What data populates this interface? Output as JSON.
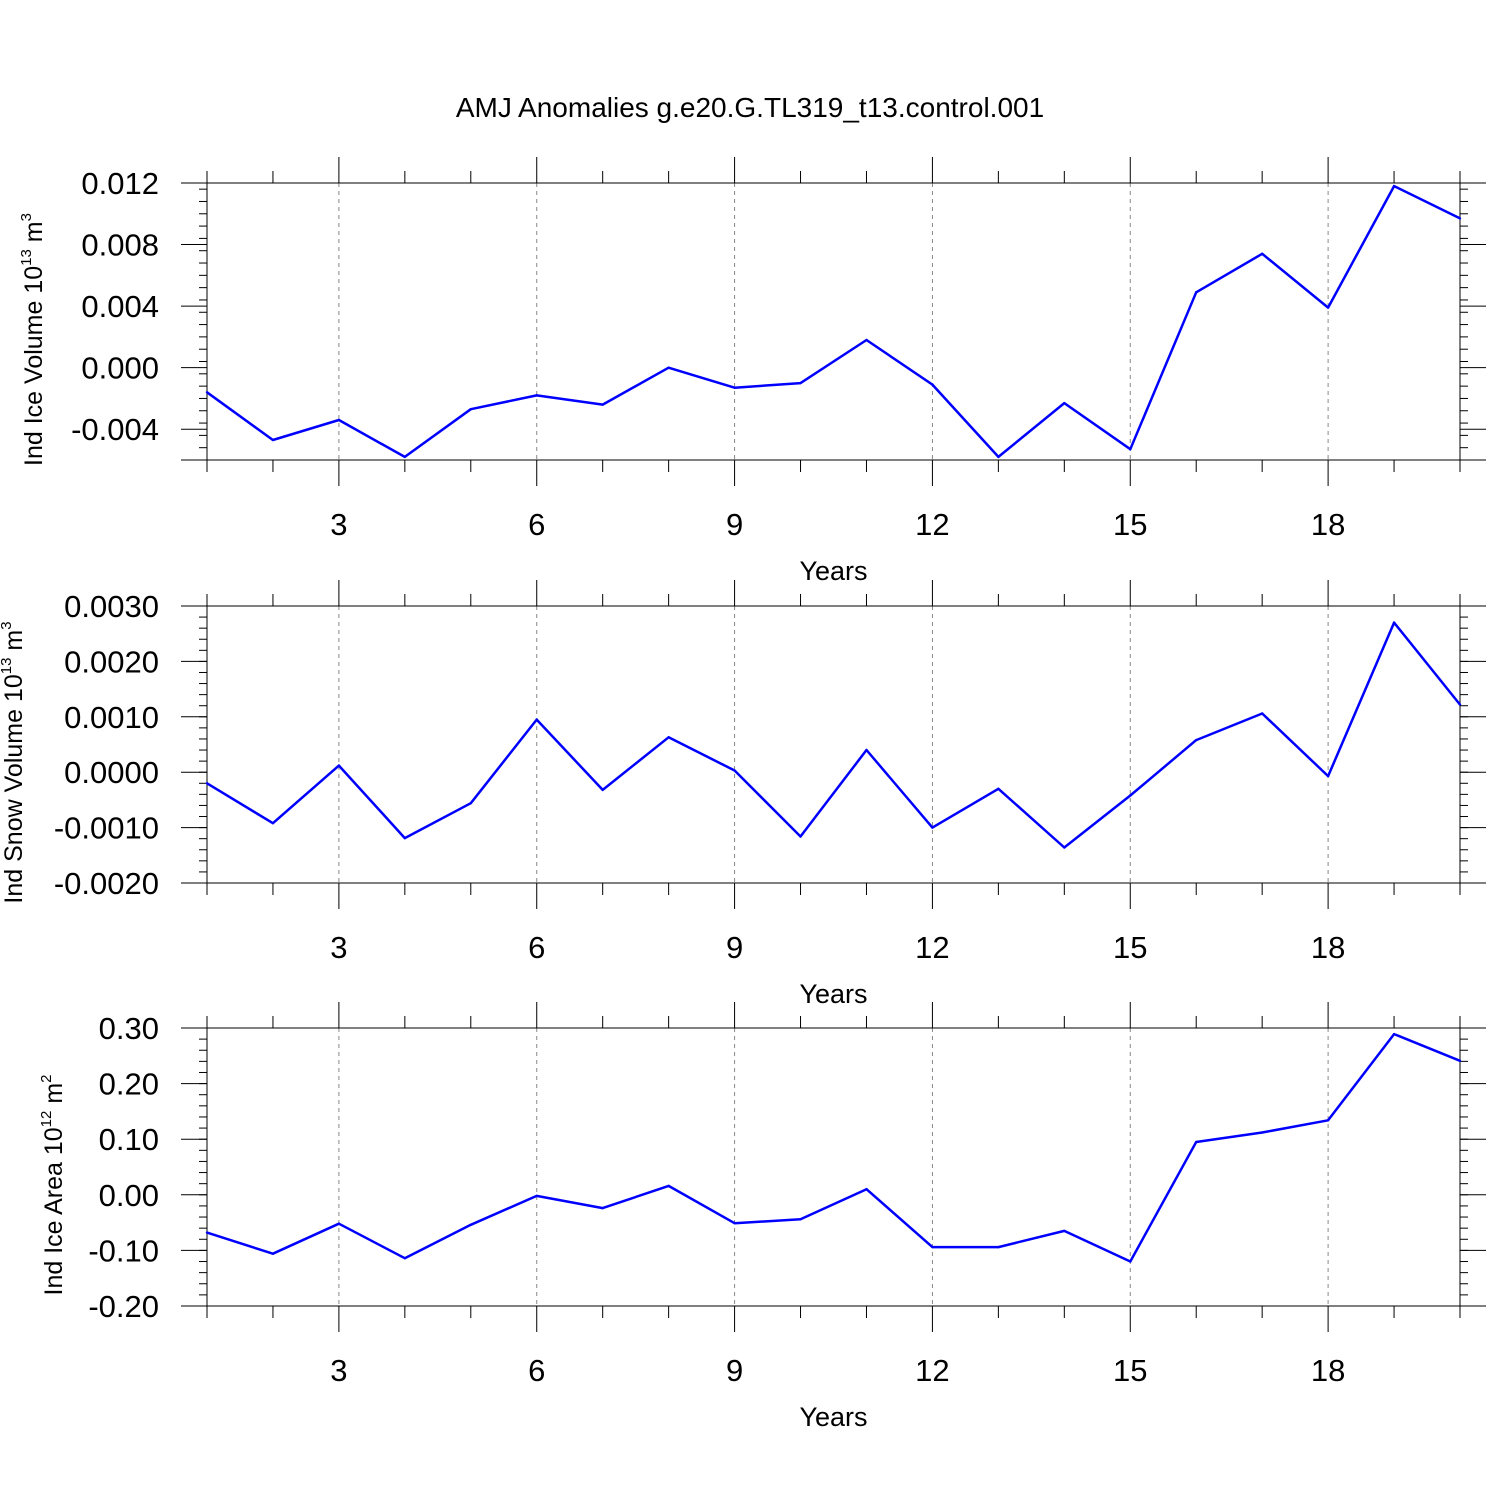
{
  "title": "AMJ Anomalies g.e20.G.TL319_t13.control.001",
  "line_color": "#0000ff",
  "chart_data": [
    {
      "type": "line",
      "xlabel": "Years",
      "ylabel": "Ind Ice Volume 10",
      "ylabel_exp": "13",
      "ylabel_unit": " m",
      "ylabel_unit_exp": "3",
      "xlim": [
        1,
        20
      ],
      "ylim": [
        -0.006,
        0.012
      ],
      "xticks": [
        3,
        6,
        9,
        12,
        15,
        18
      ],
      "yticks": [
        -0.004,
        0.0,
        0.004,
        0.008,
        0.012
      ],
      "ytick_labels": [
        "-0.004",
        "0.000",
        "0.004",
        "0.008",
        "0.012"
      ],
      "grid": "vertical dashed at major x ticks",
      "x": [
        1,
        2,
        3,
        4,
        5,
        6,
        7,
        8,
        9,
        10,
        11,
        12,
        13,
        14,
        15,
        16,
        17,
        18,
        19,
        20
      ],
      "series": [
        {
          "values": [
            -0.0016,
            -0.0047,
            -0.0034,
            -0.0058,
            -0.0027,
            -0.0018,
            -0.0024,
            0.0,
            -0.0013,
            -0.001,
            0.0018,
            -0.0011,
            -0.0058,
            -0.0023,
            -0.0053,
            0.0049,
            0.0074,
            0.0039,
            0.0118,
            0.0097
          ]
        }
      ]
    },
    {
      "type": "line",
      "xlabel": "Years",
      "ylabel": "Ind Snow Volume 10",
      "ylabel_exp": "13",
      "ylabel_unit": " m",
      "ylabel_unit_exp": "3",
      "xlim": [
        1,
        20
      ],
      "ylim": [
        -0.002,
        0.003
      ],
      "xticks": [
        3,
        6,
        9,
        12,
        15,
        18
      ],
      "yticks": [
        -0.002,
        -0.001,
        0.0,
        0.001,
        0.002,
        0.003
      ],
      "ytick_labels": [
        "-0.0020",
        "-0.0010",
        "0.0000",
        "0.0010",
        "0.0020",
        "0.0030"
      ],
      "grid": "vertical dashed at major x ticks",
      "x": [
        1,
        2,
        3,
        4,
        5,
        6,
        7,
        8,
        9,
        10,
        11,
        12,
        13,
        14,
        15,
        16,
        17,
        18,
        19,
        20
      ],
      "series": [
        {
          "values": [
            -0.0002,
            -0.00092,
            0.00012,
            -0.00119,
            -0.00056,
            0.00095,
            -0.00032,
            0.00063,
            3e-05,
            -0.00116,
            0.0004,
            -0.001,
            -0.0003,
            -0.00136,
            -0.00042,
            0.00058,
            0.00106,
            -7e-05,
            0.0027,
            0.00122
          ]
        }
      ]
    },
    {
      "type": "line",
      "xlabel": "Years",
      "ylabel": "Ind Ice Area 10",
      "ylabel_exp": "12",
      "ylabel_unit": " m",
      "ylabel_unit_exp": "2",
      "xlim": [
        1,
        20
      ],
      "ylim": [
        -0.2,
        0.3
      ],
      "xticks": [
        3,
        6,
        9,
        12,
        15,
        18
      ],
      "yticks": [
        -0.2,
        -0.1,
        0.0,
        0.1,
        0.2,
        0.3
      ],
      "ytick_labels": [
        "-0.20",
        "-0.10",
        "0.00",
        "0.10",
        "0.20",
        "0.30"
      ],
      "grid": "vertical dashed at major x ticks",
      "x": [
        1,
        2,
        3,
        4,
        5,
        6,
        7,
        8,
        9,
        10,
        11,
        12,
        13,
        14,
        15,
        16,
        17,
        18,
        19,
        20
      ],
      "series": [
        {
          "values": [
            -0.068,
            -0.106,
            -0.052,
            -0.114,
            -0.054,
            -0.002,
            -0.024,
            0.016,
            -0.051,
            -0.044,
            0.01,
            -0.094,
            -0.094,
            -0.065,
            -0.12,
            0.095,
            0.112,
            0.134,
            0.289,
            0.241
          ]
        }
      ]
    }
  ]
}
